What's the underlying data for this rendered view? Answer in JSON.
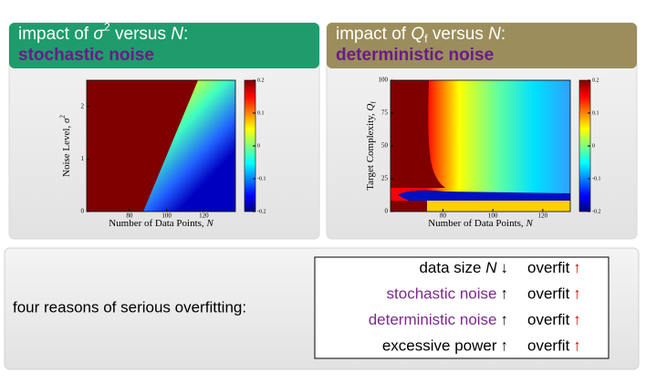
{
  "panels": [
    {
      "title": {
        "text": "impact of ",
        "var": "σ",
        "script": "2",
        "script_pos": "sup",
        "rest": " versus ",
        "var2": "N",
        "end": ":"
      },
      "subtitle": "stochastic noise",
      "chart": {
        "type": "heatmap",
        "xlabel": {
          "text": "Number of Data Points, ",
          "var": "N"
        },
        "ylabel": {
          "text": "Noise Level, ",
          "var": "σ",
          "script": "2",
          "script_pos": "sup"
        },
        "xlim": [
          57,
          137
        ],
        "xticks": [
          80,
          100,
          120
        ],
        "ylim": [
          0,
          2.5
        ],
        "yticks": [
          0,
          1,
          2
        ],
        "clim": [
          -0.2,
          0.2
        ],
        "cticks": [
          0.2,
          0.1,
          0,
          -0.1,
          -0.2
        ]
      }
    },
    {
      "title": {
        "text": "impact of ",
        "var": "Q",
        "script": "f",
        "script_pos": "sub",
        "rest": " versus ",
        "var2": "N",
        "end": ":"
      },
      "subtitle": "deterministic noise",
      "chart": {
        "type": "heatmap",
        "xlabel": {
          "text": "Number of Data Points, ",
          "var": "N"
        },
        "ylabel": {
          "text": "Target Complexity, ",
          "var": "Q",
          "script": "f",
          "script_pos": "sub"
        },
        "xlim": [
          59,
          131
        ],
        "xticks": [
          80,
          100,
          120
        ],
        "ylim": [
          0,
          100
        ],
        "yticks": [
          0,
          25,
          50,
          75,
          100
        ],
        "clim": [
          -0.2,
          0.2
        ],
        "cticks": [
          0.2,
          0.1,
          0,
          -0.1,
          -0.2
        ]
      }
    }
  ],
  "summary": {
    "label": "four reasons of serious overfitting:",
    "rows": [
      {
        "factor": "data size ",
        "var": "N",
        "arrow": "↓",
        "result": "overfit",
        "result_arrow": "↑"
      },
      {
        "factor": "stochastic noise",
        "arrow": "↑",
        "result": "overfit",
        "result_arrow": "↑"
      },
      {
        "factor": "deterministic noise",
        "arrow": "↑",
        "result": "overfit",
        "result_arrow": "↑"
      },
      {
        "factor": "excessive power",
        "arrow": "↑",
        "result": "overfit",
        "result_arrow": "↑"
      }
    ]
  }
}
